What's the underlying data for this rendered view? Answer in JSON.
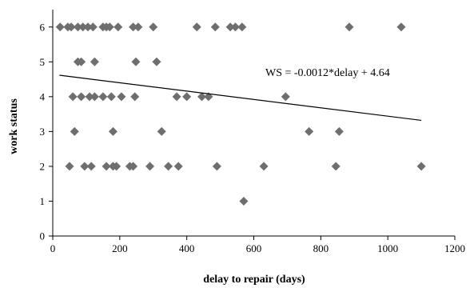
{
  "chart_data": {
    "type": "scatter",
    "xlabel": "delay to repair (days)",
    "ylabel": "work status",
    "xlim": [
      0,
      1200
    ],
    "ylim": [
      0,
      6.5
    ],
    "xticks": [
      0,
      200,
      400,
      600,
      800,
      1000,
      1200
    ],
    "yticks": [
      0,
      1,
      2,
      3,
      4,
      5,
      6
    ],
    "grid": false,
    "marker": "diamond",
    "marker_color": "#6e6e6e",
    "annotation": "WS = -0.0012*delay + 4.64",
    "trendline": {
      "slope": -0.0012,
      "intercept": 4.64,
      "x_range": [
        20,
        1100
      ]
    },
    "points": [
      {
        "x": 22,
        "y": 6
      },
      {
        "x": 45,
        "y": 6
      },
      {
        "x": 55,
        "y": 6
      },
      {
        "x": 75,
        "y": 6
      },
      {
        "x": 90,
        "y": 6
      },
      {
        "x": 105,
        "y": 6
      },
      {
        "x": 120,
        "y": 6
      },
      {
        "x": 150,
        "y": 6
      },
      {
        "x": 160,
        "y": 6
      },
      {
        "x": 170,
        "y": 6
      },
      {
        "x": 195,
        "y": 6
      },
      {
        "x": 240,
        "y": 6
      },
      {
        "x": 255,
        "y": 6
      },
      {
        "x": 300,
        "y": 6
      },
      {
        "x": 430,
        "y": 6
      },
      {
        "x": 485,
        "y": 6
      },
      {
        "x": 530,
        "y": 6
      },
      {
        "x": 545,
        "y": 6
      },
      {
        "x": 565,
        "y": 6
      },
      {
        "x": 885,
        "y": 6
      },
      {
        "x": 1040,
        "y": 6
      },
      {
        "x": 75,
        "y": 5
      },
      {
        "x": 85,
        "y": 5
      },
      {
        "x": 125,
        "y": 5
      },
      {
        "x": 248,
        "y": 5
      },
      {
        "x": 310,
        "y": 5
      },
      {
        "x": 60,
        "y": 4
      },
      {
        "x": 85,
        "y": 4
      },
      {
        "x": 110,
        "y": 4
      },
      {
        "x": 125,
        "y": 4
      },
      {
        "x": 150,
        "y": 4
      },
      {
        "x": 175,
        "y": 4
      },
      {
        "x": 205,
        "y": 4
      },
      {
        "x": 245,
        "y": 4
      },
      {
        "x": 370,
        "y": 4
      },
      {
        "x": 400,
        "y": 4
      },
      {
        "x": 445,
        "y": 4
      },
      {
        "x": 465,
        "y": 4
      },
      {
        "x": 695,
        "y": 4
      },
      {
        "x": 65,
        "y": 3
      },
      {
        "x": 180,
        "y": 3
      },
      {
        "x": 325,
        "y": 3
      },
      {
        "x": 765,
        "y": 3
      },
      {
        "x": 855,
        "y": 3
      },
      {
        "x": 50,
        "y": 2
      },
      {
        "x": 95,
        "y": 2
      },
      {
        "x": 115,
        "y": 2
      },
      {
        "x": 160,
        "y": 2
      },
      {
        "x": 180,
        "y": 2
      },
      {
        "x": 190,
        "y": 2
      },
      {
        "x": 230,
        "y": 2
      },
      {
        "x": 240,
        "y": 2
      },
      {
        "x": 290,
        "y": 2
      },
      {
        "x": 345,
        "y": 2
      },
      {
        "x": 375,
        "y": 2
      },
      {
        "x": 490,
        "y": 2
      },
      {
        "x": 630,
        "y": 2
      },
      {
        "x": 845,
        "y": 2
      },
      {
        "x": 1100,
        "y": 2
      },
      {
        "x": 570,
        "y": 1
      }
    ]
  }
}
